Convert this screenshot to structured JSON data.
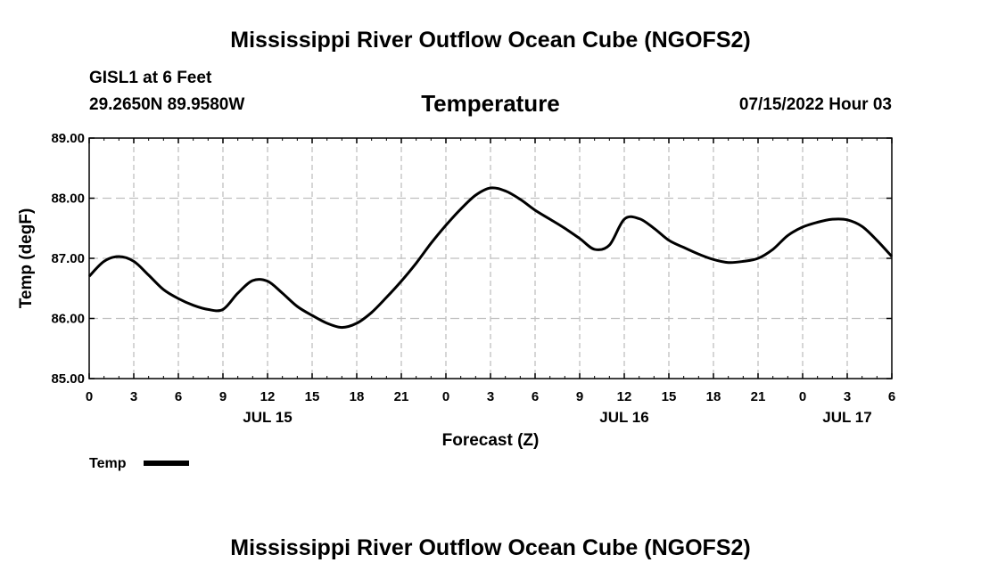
{
  "header": {
    "main_title": "Mississippi River Outflow Ocean Cube (NGOFS2)",
    "station": "GISL1 at 6 Feet",
    "coordinates": "29.2650N  89.9580W",
    "timestamp": "07/15/2022 Hour 03"
  },
  "footer": {
    "main_title": "Mississippi River Outflow Ocean Cube (NGOFS2)"
  },
  "legend": {
    "label": "Temp"
  },
  "colors": {
    "line": "#000000",
    "grid": "#bfbfbf"
  },
  "chart_data": {
    "type": "line",
    "title": "Temperature",
    "xlabel": "Forecast (Z)",
    "ylabel": "Temp (degF)",
    "xlim": [
      0,
      54
    ],
    "ylim": [
      85.0,
      89.0
    ],
    "y_ticks": [
      "85.00",
      "86.00",
      "87.00",
      "88.00",
      "89.00"
    ],
    "y_tick_values": [
      85,
      86,
      87,
      88,
      89
    ],
    "x_tick_hours": [
      0,
      3,
      6,
      9,
      12,
      15,
      18,
      21,
      24,
      27,
      30,
      33,
      36,
      39,
      42,
      45,
      48,
      51,
      54
    ],
    "x_tick_labels": [
      "0",
      "3",
      "6",
      "9",
      "12",
      "15",
      "18",
      "21",
      "0",
      "3",
      "6",
      "9",
      "12",
      "15",
      "18",
      "21",
      "0",
      "3",
      "6"
    ],
    "date_labels": [
      {
        "hour": 12,
        "label": "JUL 15"
      },
      {
        "hour": 36,
        "label": "JUL 16"
      },
      {
        "hour": 51,
        "label": "JUL 17"
      }
    ],
    "grid": true,
    "series": [
      {
        "name": "Temp",
        "x": [
          0,
          1,
          2,
          3,
          4,
          5,
          6,
          7,
          8,
          9,
          10,
          11,
          12,
          13,
          14,
          15,
          16,
          17,
          18,
          19,
          20,
          21,
          22,
          23,
          24,
          25,
          26,
          27,
          28,
          29,
          30,
          31,
          32,
          33,
          34,
          35,
          36,
          37,
          38,
          39,
          40,
          41,
          42,
          43,
          44,
          45,
          46,
          47,
          48,
          49,
          50,
          51,
          52,
          53,
          54
        ],
        "values": [
          86.7,
          86.95,
          87.03,
          86.95,
          86.72,
          86.48,
          86.33,
          86.22,
          86.15,
          86.15,
          86.42,
          86.63,
          86.62,
          86.42,
          86.2,
          86.05,
          85.92,
          85.85,
          85.92,
          86.1,
          86.35,
          86.62,
          86.92,
          87.25,
          87.55,
          87.82,
          88.05,
          88.17,
          88.12,
          87.98,
          87.8,
          87.65,
          87.5,
          87.33,
          87.15,
          87.22,
          87.65,
          87.66,
          87.5,
          87.3,
          87.18,
          87.07,
          86.98,
          86.93,
          86.95,
          87.0,
          87.15,
          87.38,
          87.52,
          87.6,
          87.65,
          87.64,
          87.53,
          87.3,
          87.03
        ]
      }
    ]
  }
}
